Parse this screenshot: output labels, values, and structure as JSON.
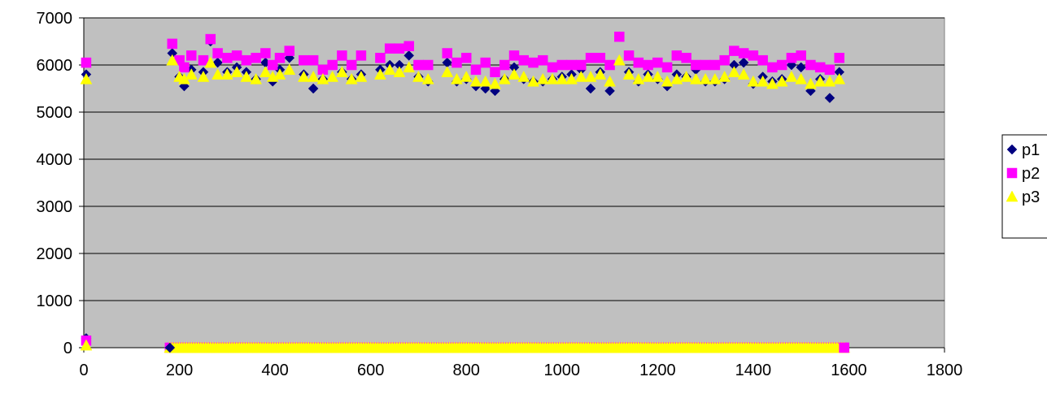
{
  "chart_data": {
    "type": "scatter",
    "title": "",
    "xlabel": "",
    "ylabel": "",
    "xlim": [
      0,
      1800
    ],
    "ylim": [
      0,
      7000
    ],
    "x_ticks": [
      0,
      200,
      400,
      600,
      800,
      1000,
      1200,
      1400,
      1600,
      1800
    ],
    "y_ticks": [
      0,
      1000,
      2000,
      3000,
      4000,
      5000,
      6000,
      7000
    ],
    "x_tick_labels": [
      "0",
      "200",
      "400",
      "600",
      "800",
      "1000",
      "1200",
      "1400",
      "1600",
      "1800"
    ],
    "y_tick_labels": [
      "0",
      "1000",
      "2000",
      "3000",
      "4000",
      "5000",
      "6000",
      "7000"
    ],
    "grid": "horizontal major",
    "plot_background": "#c0c0c0",
    "legend_position": "right",
    "series": [
      {
        "name": "p1",
        "marker": "diamond",
        "color": "#000080",
        "high_x": [
          5,
          185,
          200,
          210,
          225,
          250,
          265,
          280,
          300,
          320,
          340,
          360,
          380,
          395,
          410,
          430,
          460,
          480,
          500,
          520,
          540,
          560,
          580,
          620,
          640,
          660,
          680,
          700,
          720,
          760,
          780,
          800,
          820,
          840,
          860,
          880,
          900,
          920,
          940,
          960,
          980,
          1000,
          1020,
          1040,
          1060,
          1080,
          1100,
          1120,
          1140,
          1160,
          1180,
          1200,
          1220,
          1240,
          1260,
          1280,
          1300,
          1320,
          1340,
          1360,
          1380,
          1400,
          1420,
          1440,
          1460,
          1480,
          1500,
          1520,
          1540,
          1560,
          1580
        ],
        "high_y": [
          5800,
          6250,
          5750,
          5550,
          5900,
          5850,
          6500,
          6050,
          5850,
          5950,
          5850,
          5700,
          6050,
          5650,
          5900,
          6150,
          5800,
          5500,
          5700,
          6000,
          5850,
          5700,
          5800,
          5900,
          6000,
          6000,
          6200,
          5750,
          5650,
          6050,
          5650,
          5700,
          5550,
          5500,
          5450,
          5700,
          5950,
          5700,
          5650,
          5650,
          5700,
          5750,
          5800,
          5900,
          5500,
          5850,
          5450,
          6600,
          5850,
          5650,
          5800,
          5700,
          5550,
          5800,
          5750,
          5900,
          5650,
          5650,
          5700,
          6000,
          6050,
          5600,
          5750,
          5650,
          5700,
          6000,
          5950,
          5450,
          5700,
          5300,
          5850
        ]
      },
      {
        "name": "p2",
        "marker": "square",
        "color": "#ff00ff",
        "high_x": [
          5,
          185,
          200,
          210,
          225,
          250,
          265,
          280,
          300,
          320,
          340,
          360,
          380,
          395,
          410,
          430,
          460,
          480,
          500,
          520,
          540,
          560,
          580,
          620,
          640,
          660,
          680,
          700,
          720,
          760,
          780,
          800,
          820,
          840,
          860,
          880,
          900,
          920,
          940,
          960,
          980,
          1000,
          1020,
          1040,
          1060,
          1080,
          1100,
          1120,
          1140,
          1160,
          1180,
          1200,
          1220,
          1240,
          1260,
          1280,
          1300,
          1320,
          1340,
          1360,
          1380,
          1400,
          1420,
          1440,
          1460,
          1480,
          1500,
          1520,
          1540,
          1560,
          1580
        ],
        "high_y": [
          6050,
          6450,
          6100,
          5950,
          6200,
          6100,
          6550,
          6250,
          6150,
          6200,
          6100,
          6150,
          6250,
          6000,
          6150,
          6300,
          6100,
          6100,
          5900,
          6000,
          6200,
          6000,
          6200,
          6150,
          6350,
          6350,
          6400,
          6000,
          6000,
          6250,
          6050,
          6150,
          5900,
          6050,
          5850,
          6000,
          6200,
          6100,
          6050,
          6100,
          5950,
          6000,
          6000,
          6000,
          6150,
          6150,
          6000,
          6600,
          6200,
          6050,
          6000,
          6050,
          5950,
          6200,
          6150,
          6000,
          6000,
          6000,
          6100,
          6300,
          6250,
          6200,
          6100,
          5950,
          6000,
          6150,
          6200,
          6000,
          5950,
          5900,
          6150
        ]
      },
      {
        "name": "p3",
        "marker": "triangle",
        "color": "#ffff00",
        "high_x": [
          5,
          185,
          200,
          210,
          225,
          250,
          265,
          280,
          300,
          320,
          340,
          360,
          380,
          395,
          410,
          430,
          460,
          480,
          500,
          520,
          540,
          560,
          580,
          620,
          640,
          660,
          680,
          700,
          720,
          760,
          780,
          800,
          820,
          840,
          860,
          880,
          900,
          920,
          940,
          960,
          980,
          1000,
          1020,
          1040,
          1060,
          1080,
          1100,
          1120,
          1140,
          1160,
          1180,
          1200,
          1220,
          1240,
          1260,
          1280,
          1300,
          1320,
          1340,
          1360,
          1380,
          1400,
          1420,
          1440,
          1460,
          1480,
          1500,
          1520,
          1540,
          1560,
          1580
        ],
        "high_y": [
          5700,
          6100,
          5750,
          5700,
          5800,
          5750,
          6050,
          5800,
          5800,
          5850,
          5750,
          5700,
          5850,
          5750,
          5800,
          5900,
          5750,
          5750,
          5700,
          5750,
          5850,
          5700,
          5750,
          5800,
          5900,
          5850,
          5950,
          5750,
          5700,
          5850,
          5700,
          5750,
          5650,
          5650,
          5600,
          5700,
          5800,
          5750,
          5650,
          5700,
          5700,
          5700,
          5700,
          5750,
          5750,
          5800,
          5650,
          6100,
          5800,
          5700,
          5750,
          5750,
          5650,
          5700,
          5750,
          5700,
          5700,
          5700,
          5750,
          5850,
          5800,
          5650,
          5650,
          5600,
          5650,
          5750,
          5700,
          5600,
          5650,
          5650,
          5700
        ]
      }
    ],
    "baseline": {
      "x_start": 180,
      "x_end": 1590,
      "x_step": 5,
      "y": 0
    },
    "origin_points": [
      {
        "series": "p1",
        "x": 5,
        "y": 200
      },
      {
        "series": "p2",
        "x": 5,
        "y": 150
      },
      {
        "series": "p3",
        "x": 5,
        "y": 50
      },
      {
        "series": "p1",
        "x": 180,
        "y": 0
      },
      {
        "series": "p2",
        "x": 1590,
        "y": 0
      }
    ]
  }
}
